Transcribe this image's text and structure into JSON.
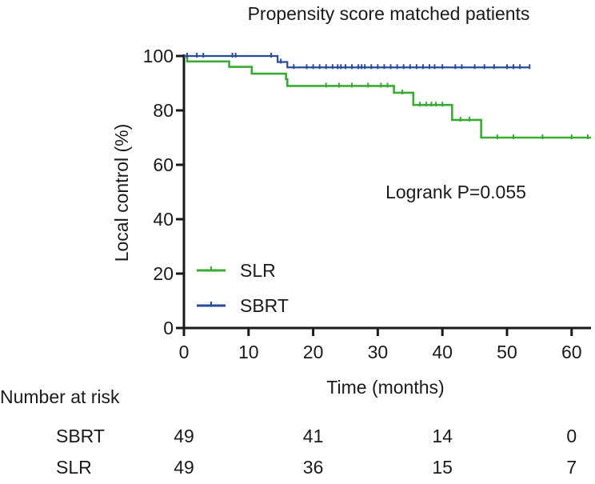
{
  "chart_data": {
    "type": "line",
    "subtype": "kaplan-meier",
    "title": "Propensity score matched patients",
    "xlabel": "Time (months)",
    "ylabel": "Local control (%)",
    "xlim": [
      0,
      63
    ],
    "ylim": [
      0,
      100
    ],
    "x_ticks": [
      0,
      10,
      20,
      30,
      40,
      50,
      60
    ],
    "y_ticks": [
      0,
      20,
      40,
      60,
      80,
      100
    ],
    "annotation": "Logrank P=0.055",
    "legend_position": "lower-left",
    "series": [
      {
        "name": "SLR",
        "color": "#3aaa35",
        "steps": [
          [
            0,
            100
          ],
          [
            0.5,
            98
          ],
          [
            7,
            96
          ],
          [
            10.5,
            93.5
          ],
          [
            15.8,
            91.5
          ],
          [
            16,
            89
          ],
          [
            32.5,
            86.5
          ],
          [
            35.5,
            82
          ],
          [
            41.5,
            76.5
          ],
          [
            46,
            70
          ],
          [
            63,
            70
          ]
        ],
        "censors": [
          [
            22,
            89
          ],
          [
            24,
            89
          ],
          [
            26,
            89
          ],
          [
            28.5,
            89
          ],
          [
            30.5,
            89
          ],
          [
            31.5,
            89
          ],
          [
            33.8,
            86.5
          ],
          [
            36.5,
            82
          ],
          [
            37.5,
            82
          ],
          [
            38.3,
            82
          ],
          [
            39,
            82
          ],
          [
            40,
            82
          ],
          [
            42.8,
            76.5
          ],
          [
            44.2,
            76.5
          ],
          [
            48.5,
            70
          ],
          [
            51,
            70
          ],
          [
            55.5,
            70
          ],
          [
            60,
            70
          ],
          [
            62.5,
            70
          ]
        ]
      },
      {
        "name": "SBRT",
        "color": "#2a4b9b",
        "steps": [
          [
            0,
            100
          ],
          [
            14.5,
            97.8
          ],
          [
            16,
            95.8
          ],
          [
            53.5,
            95.8
          ]
        ],
        "censors": [
          [
            0.5,
            100
          ],
          [
            2,
            100
          ],
          [
            3,
            100
          ],
          [
            7.5,
            100
          ],
          [
            8,
            100
          ],
          [
            13.5,
            100
          ],
          [
            15,
            97.8
          ],
          [
            17,
            95.8
          ],
          [
            19,
            95.8
          ],
          [
            20,
            95.8
          ],
          [
            21,
            95.8
          ],
          [
            22,
            95.8
          ],
          [
            23,
            95.8
          ],
          [
            23.8,
            95.8
          ],
          [
            24.3,
            95.8
          ],
          [
            25,
            95.8
          ],
          [
            26,
            95.8
          ],
          [
            27,
            95.8
          ],
          [
            27.5,
            95.8
          ],
          [
            28,
            95.8
          ],
          [
            29,
            95.8
          ],
          [
            30,
            95.8
          ],
          [
            31,
            95.8
          ],
          [
            32,
            95.8
          ],
          [
            33,
            95.8
          ],
          [
            34,
            95.8
          ],
          [
            35,
            95.8
          ],
          [
            36,
            95.8
          ],
          [
            37,
            95.8
          ],
          [
            38,
            95.8
          ],
          [
            38.8,
            95.8
          ],
          [
            40,
            95.8
          ],
          [
            42,
            95.8
          ],
          [
            43,
            95.8
          ],
          [
            45,
            95.8
          ],
          [
            46.5,
            95.8
          ],
          [
            48,
            95.8
          ],
          [
            50,
            95.8
          ],
          [
            51,
            95.8
          ],
          [
            52,
            95.8
          ],
          [
            53.5,
            95.8
          ]
        ]
      }
    ],
    "risk_table": {
      "title": "Number at risk",
      "timepoints": [
        0,
        20,
        40,
        60
      ],
      "rows": [
        {
          "label": "SBRT",
          "values": [
            "49",
            "41",
            "14",
            "0"
          ]
        },
        {
          "label": "SLR",
          "values": [
            "49",
            "36",
            "15",
            "7"
          ]
        }
      ]
    }
  }
}
